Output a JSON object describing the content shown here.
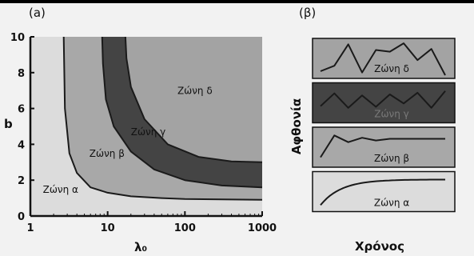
{
  "colors": {
    "background": "#f2f2f2",
    "zone_a": "#dcdcdc",
    "zone_b": "#a8a8a8",
    "zone_c": "#444444",
    "zone_d": "#a3a3a3",
    "line": "#1a1a1a"
  },
  "chart_data": [
    {
      "type": "area",
      "panel_label": "(a)",
      "xlabel": "λ₀",
      "ylabel": "b",
      "xscale": "log",
      "xlim": [
        1,
        1000
      ],
      "ylim": [
        0,
        10
      ],
      "xticks": [
        "1",
        "10",
        "100",
        "1000"
      ],
      "yticks": [
        "0",
        "2",
        "4",
        "6",
        "8",
        "10"
      ],
      "grid": false,
      "boundaries": [
        {
          "between": [
            "Ζώνη α",
            "Ζώνη β"
          ],
          "x": [
            2.7,
            2.8,
            3.2,
            4,
            6,
            10,
            20,
            50,
            100,
            1000
          ],
          "y": [
            10,
            6,
            3.5,
            2.4,
            1.6,
            1.3,
            1.1,
            1.0,
            0.95,
            0.9
          ]
        },
        {
          "between": [
            "Ζώνη β",
            "Ζώνη γ"
          ],
          "x": [
            8.5,
            8.7,
            9.5,
            12,
            20,
            40,
            100,
            300,
            1000
          ],
          "y": [
            10,
            8.5,
            6.5,
            5.0,
            3.6,
            2.6,
            2.0,
            1.7,
            1.6
          ]
        },
        {
          "between": [
            "Ζώνη γ",
            "Ζώνη δ"
          ],
          "x": [
            17,
            17.5,
            20,
            30,
            60,
            150,
            400,
            1000
          ],
          "y": [
            10,
            8.8,
            7.2,
            5.4,
            4.0,
            3.3,
            3.05,
            3.0
          ]
        }
      ],
      "zones": [
        {
          "label": "Ζώνη α",
          "label_at": {
            "x": 1.45,
            "y": 1.3
          }
        },
        {
          "label": "Ζώνη β",
          "label_at": {
            "x": 5.8,
            "y": 3.3
          }
        },
        {
          "label": "Ζώνη γ",
          "label_at": {
            "x": 20,
            "y": 4.5
          }
        },
        {
          "label": "Ζώνη δ",
          "label_at": {
            "x": 80,
            "y": 6.8
          }
        }
      ]
    },
    {
      "type": "line",
      "panel_label": "(β)",
      "xlabel": "Χρόνος",
      "ylabel": "Αφθονία",
      "series": [
        {
          "name": "Ζώνη δ",
          "values": [
            0.12,
            0.28,
            0.92,
            0.08,
            0.75,
            0.7,
            0.95,
            0.45,
            0.78,
            0.0
          ]
        },
        {
          "name": "Ζώνη γ",
          "values": [
            0.4,
            0.78,
            0.35,
            0.72,
            0.38,
            0.75,
            0.48,
            0.8,
            0.35,
            0.85
          ]
        },
        {
          "name": "Ζώνη β",
          "values": [
            0.2,
            0.85,
            0.65,
            0.78,
            0.7,
            0.75,
            0.75,
            0.75,
            0.75,
            0.75
          ]
        },
        {
          "name": "Ζώνη α",
          "values": [
            0.1,
            0.55,
            0.78,
            0.85,
            0.86,
            0.86,
            0.86,
            0.86,
            0.86,
            0.86
          ]
        }
      ]
    }
  ]
}
